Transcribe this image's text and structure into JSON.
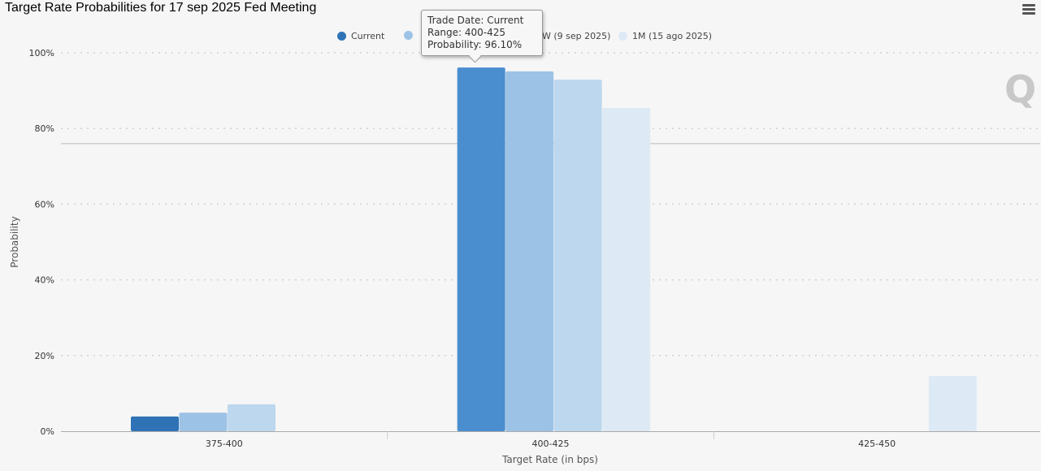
{
  "chart_data": {
    "type": "bar",
    "title": "Target Rate Probabilities for 17 sep 2025 Fed Meeting",
    "xlabel": "Target Rate (in bps)",
    "ylabel": "Probability",
    "categories": [
      "375-400",
      "400-425",
      "425-450"
    ],
    "ylim": [
      0,
      100
    ],
    "yticks": [
      "0%",
      "20%",
      "40%",
      "60%",
      "80%",
      "100%"
    ],
    "grid": true,
    "legend_position": "top",
    "series": [
      {
        "name": "Current",
        "color": "#2f73b6",
        "values": [
          3.9,
          96.1,
          0
        ]
      },
      {
        "name": "",
        "color": "#9cc2e6",
        "values": [
          4.9,
          95.1,
          0
        ]
      },
      {
        "name": "1W (9 sep 2025)",
        "color": "#bdd7ee",
        "values": [
          7.1,
          92.9,
          0
        ]
      },
      {
        "name": "1M (15 ago 2025)",
        "color": "#ddeaf6",
        "values": [
          0,
          85.4,
          14.6
        ]
      }
    ],
    "highlight_color": "#4a8ecf"
  },
  "tooltip": {
    "line1": "Trade Date: Current",
    "line2": "Range: 400-425",
    "line3": "Probability: 96.10%"
  },
  "watermark": "Q"
}
